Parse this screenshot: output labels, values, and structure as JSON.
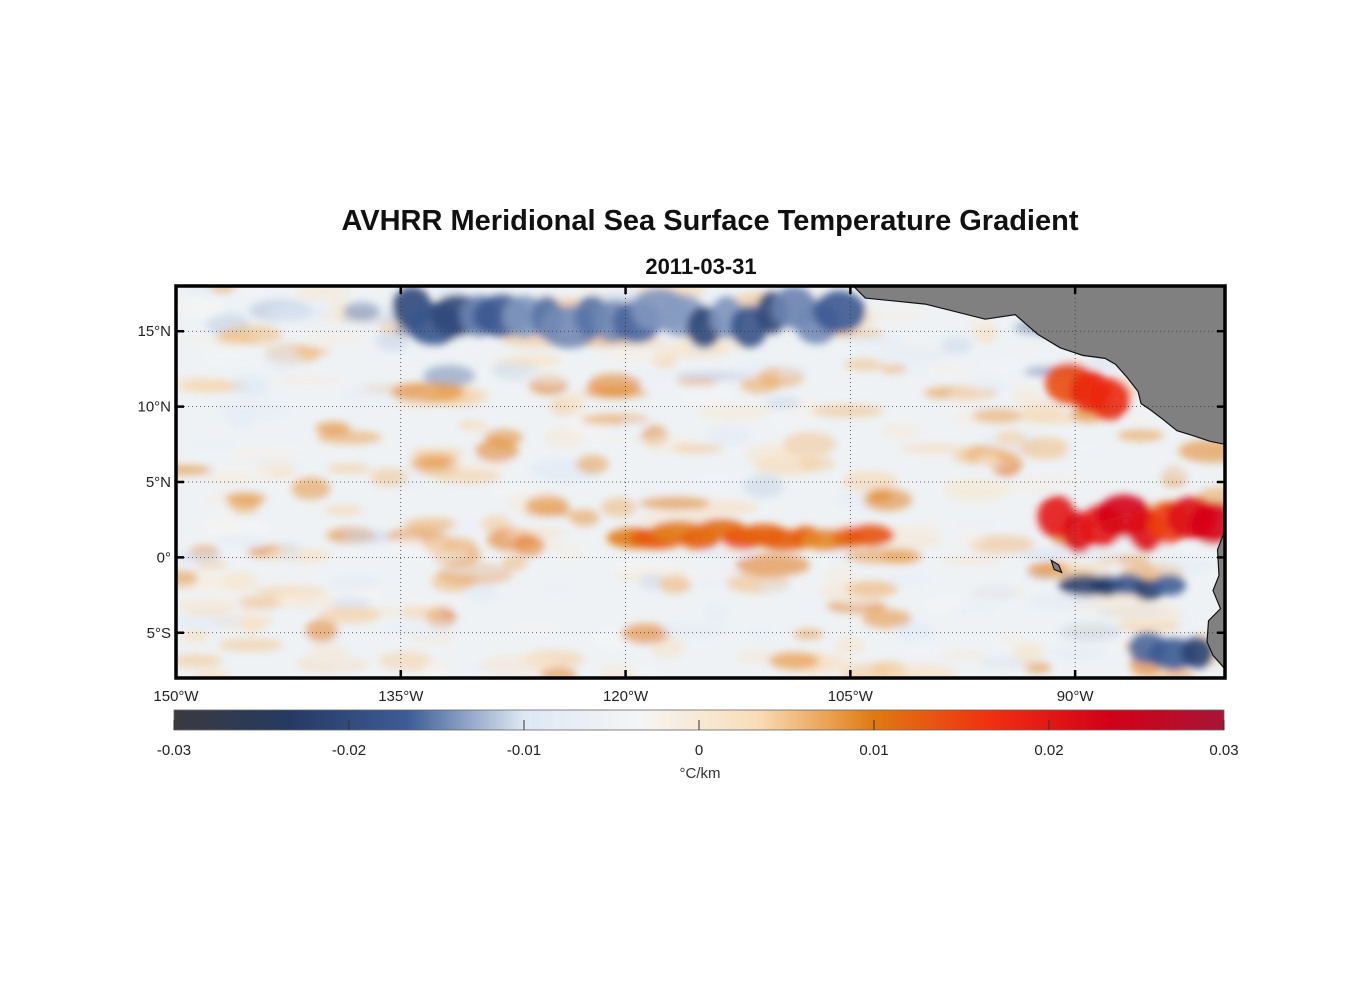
{
  "title": "AVHRR Meridional Sea Surface Temperature Gradient",
  "date": "2011-03-31",
  "chart_data": {
    "type": "heatmap",
    "title": "AVHRR Meridional Sea Surface Temperature Gradient",
    "subtitle": "2011-03-31",
    "lon_range": [
      -150,
      -80
    ],
    "lat_range": [
      -8,
      18
    ],
    "lon_ticks": [
      {
        "value": -150,
        "label": "150°W"
      },
      {
        "value": -135,
        "label": "135°W"
      },
      {
        "value": -120,
        "label": "120°W"
      },
      {
        "value": -105,
        "label": "105°W"
      },
      {
        "value": -90,
        "label": "90°W"
      }
    ],
    "lat_ticks": [
      {
        "value": 15,
        "label": "15°N"
      },
      {
        "value": 10,
        "label": "10°N"
      },
      {
        "value": 5,
        "label": "5°N"
      },
      {
        "value": 0,
        "label": "0°"
      },
      {
        "value": -5,
        "label": "5°S"
      }
    ],
    "grid": true,
    "grid_style": "dotted",
    "land_color": "#808080",
    "colorbar": {
      "orientation": "horizontal",
      "min": -0.03,
      "max": 0.03,
      "ticks": [
        "-0.03",
        "-0.02",
        "-0.01",
        "0",
        "0.01",
        "0.02",
        "0.03"
      ],
      "unit": "°C/km",
      "colors": [
        "#3a3a3f",
        "#263a63",
        "#3d5c96",
        "#dde8f5",
        "#f5f5f5",
        "#f9ddb8",
        "#e07a12",
        "#f03010",
        "#d40018",
        "#a81535"
      ]
    },
    "features": [
      {
        "kind": "positive_band",
        "lon": [
          -120,
          -103
        ],
        "lat": [
          0.5,
          2.5
        ],
        "approx_value": 0.012
      },
      {
        "kind": "positive_band",
        "lon": [
          -92,
          -80
        ],
        "lat": [
          0,
          4
        ],
        "approx_value": 0.02
      },
      {
        "kind": "positive_patch",
        "lon": [
          -91,
          -87
        ],
        "lat": [
          9,
          13
        ],
        "approx_value": 0.018
      },
      {
        "kind": "negative_band",
        "lon": [
          -135,
          -105
        ],
        "lat": [
          14,
          18
        ],
        "approx_value": -0.018
      },
      {
        "kind": "negative_patch",
        "lon": [
          -90,
          -83
        ],
        "lat": [
          -3,
          -1
        ],
        "approx_value": -0.02
      },
      {
        "kind": "negative_patch",
        "lon": [
          -86,
          -81
        ],
        "lat": [
          -8,
          -5
        ],
        "approx_value": -0.02
      }
    ]
  }
}
